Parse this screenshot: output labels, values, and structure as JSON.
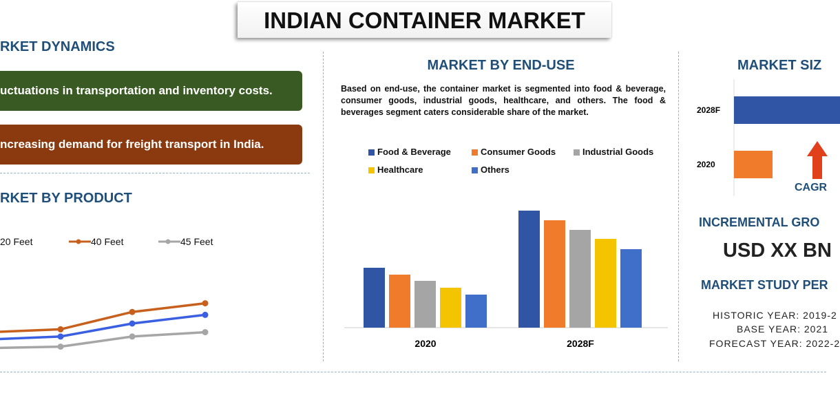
{
  "title": "INDIAN CONTAINER MARKET",
  "dynamics": {
    "heading": "RKET DYNAMICS",
    "items": [
      {
        "text": "uctuations in transportation and inventory costs.",
        "color": "#3a5a23"
      },
      {
        "text": "ncreasing demand for freight transport in India.",
        "color": "#8b3a0f"
      }
    ]
  },
  "end_use": {
    "heading": "MARKET BY END-USE",
    "description": "Based on end-use, the container market is segmented into food & beverage, consumer goods, industrial goods, healthcare, and others. The food & beverages segment caters considerable share of the market."
  },
  "market_size": {
    "heading": "MARKET SIZ",
    "cagr_label": "CAGR",
    "incremental_heading": "INCREMENTAL GRO",
    "incremental_value": "USD XX BN",
    "study_heading": "MARKET STUDY PER",
    "historic": "HISTORIC YEAR: 2019-2",
    "base": "BASE YEAR: 2021",
    "forecast": "FORECAST YEAR: 2022-2"
  },
  "chart_data": [
    {
      "type": "line",
      "title": "RKET BY PRODUCT",
      "series": [
        {
          "name": "20 Feet",
          "color": "#3a5fe0",
          "values": [
            9,
            11,
            20,
            26
          ]
        },
        {
          "name": "40 Feet",
          "color": "#c8601d",
          "values": [
            14,
            16,
            28,
            34
          ]
        },
        {
          "name": "45 Feet",
          "color": "#a6a6a6",
          "values": [
            3,
            4,
            11,
            14
          ]
        }
      ],
      "legend": "top",
      "grid": false
    },
    {
      "type": "bar",
      "categories": [
        "2020",
        "2028F"
      ],
      "series": [
        {
          "name": "Food & Beverage",
          "color": "#2f55a4",
          "values": [
            87,
            170
          ]
        },
        {
          "name": "Consumer Goods",
          "color": "#f07b2a",
          "values": [
            77,
            156
          ]
        },
        {
          "name": "Industrial Goods",
          "color": "#a5a5a5",
          "values": [
            68,
            142
          ]
        },
        {
          "name": "Healthcare",
          "color": "#f5c400",
          "values": [
            58,
            129
          ]
        },
        {
          "name": "Others",
          "color": "#3f6fc9",
          "values": [
            48,
            114
          ]
        }
      ],
      "legend": "top",
      "grid": false
    },
    {
      "type": "bar",
      "orientation": "horizontal",
      "categories": [
        "2028F",
        "2020"
      ],
      "series": [
        {
          "colors": [
            "#2f55a4",
            "#f07b2a"
          ],
          "values": [
            100,
            35
          ]
        }
      ]
    }
  ]
}
